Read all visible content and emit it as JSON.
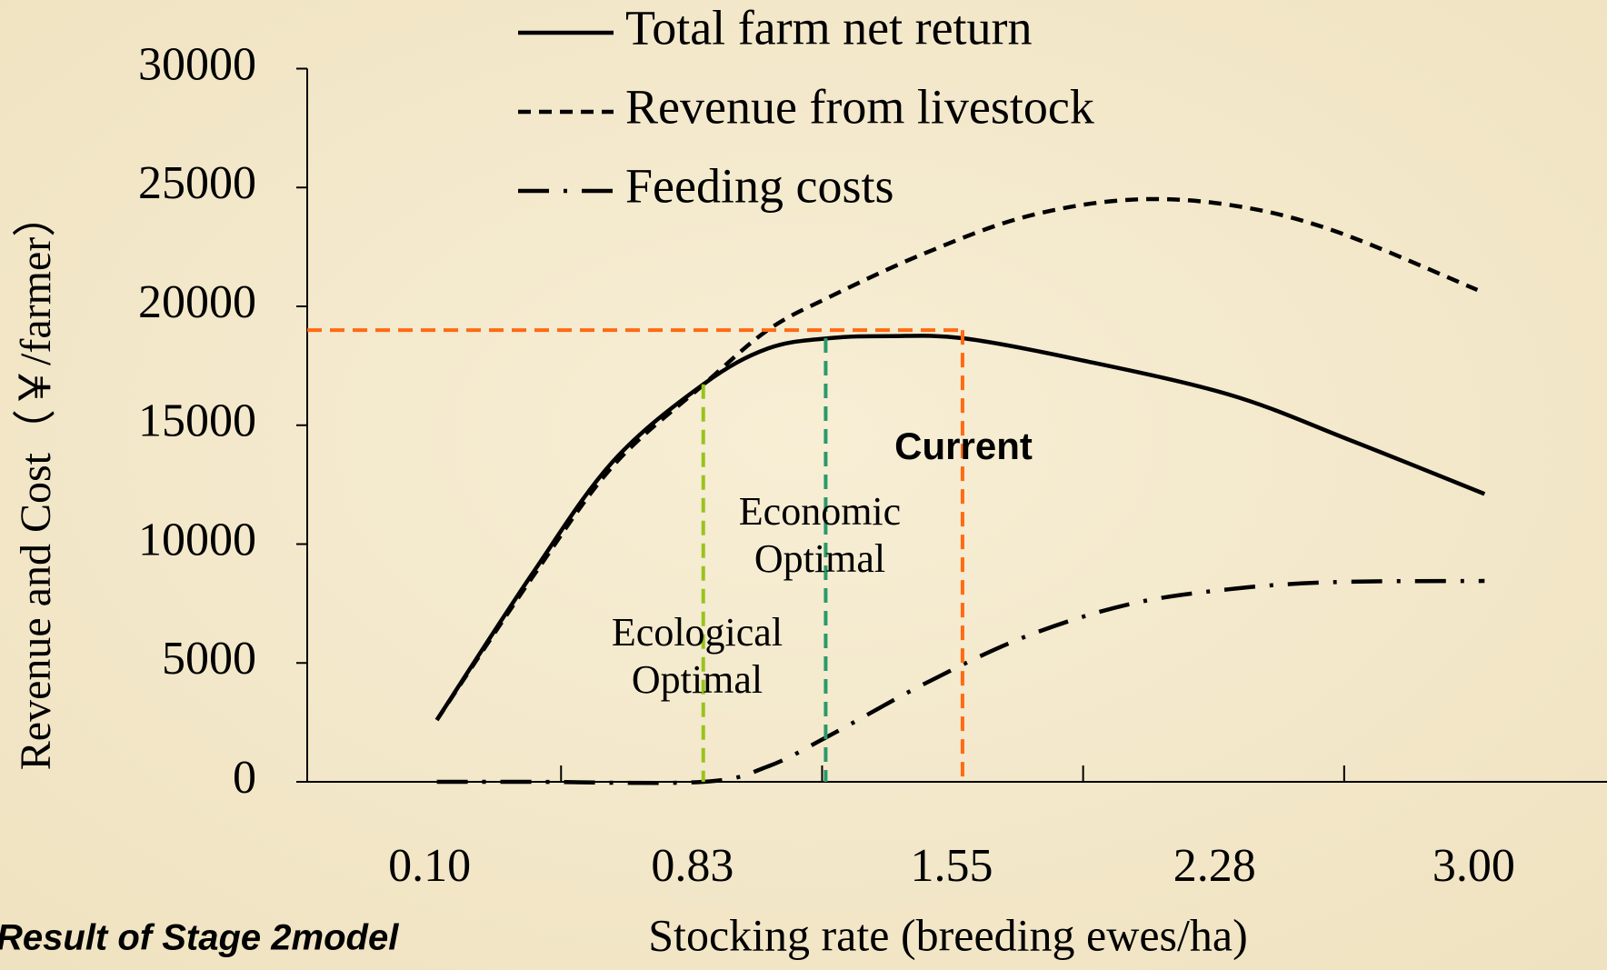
{
  "chart_data": {
    "type": "line",
    "xlabel": "Stocking rate (breeding ewes/ha)",
    "ylabel": "Revenue and Cost（￥/farmer）",
    "footnote": "Result of Stage 2model",
    "xlim": [
      -0.24,
      3.37
    ],
    "xticks": [
      {
        "value": 0.1,
        "label": "0.10"
      },
      0.83,
      1.55,
      2.28,
      {
        "value": 3,
        "label": "3.00"
      }
    ],
    "ylim": [
      0,
      30000
    ],
    "yticks": [
      0,
      5000,
      10000,
      15000,
      20000,
      25000,
      30000
    ],
    "series": [
      {
        "name": "Total farm net return",
        "color": "#000000",
        "style": "solid",
        "x": [
          0.12,
          0.385,
          0.61,
          0.86,
          1.04,
          1.21,
          1.38,
          1.58,
          1.89,
          2.32,
          2.66,
          3.03
        ],
        "values": [
          2600,
          8750,
          13490,
          16720,
          18230,
          18660,
          18750,
          18660,
          17800,
          16290,
          14350,
          12110
        ]
      },
      {
        "name": "Revenue from livestock",
        "color": "#000000",
        "style": "dashed",
        "x": [
          0.12,
          0.385,
          0.61,
          0.86,
          1.04,
          1.21,
          1.47,
          1.75,
          2.04,
          2.32,
          2.61,
          3.01
        ],
        "values": [
          2600,
          8600,
          13300,
          16700,
          19010,
          20390,
          22200,
          23750,
          24480,
          24270,
          23190,
          20690
        ]
      },
      {
        "name": "Feeding costs",
        "color": "#000000",
        "style": "dashdot",
        "x": [
          0.12,
          0.385,
          0.86,
          1.04,
          1.21,
          1.47,
          1.75,
          2.04,
          2.32,
          2.61,
          3.03
        ],
        "values": [
          0,
          0,
          0,
          650,
          1940,
          4090,
          6080,
          7460,
          8100,
          8400,
          8450
        ]
      }
    ],
    "markers": [
      {
        "label": [
          "Ecological",
          "Optimal"
        ],
        "x": 0.86,
        "y": 16720,
        "color": "#99c31c"
      },
      {
        "label": [
          "Economic",
          "Optimal"
        ],
        "x": 1.2,
        "y": 18660,
        "color": "#2a9a6a"
      },
      {
        "label": [
          "Current"
        ],
        "x": 1.58,
        "y": 19000,
        "color": "#ff6a13",
        "hline": true
      }
    ]
  }
}
